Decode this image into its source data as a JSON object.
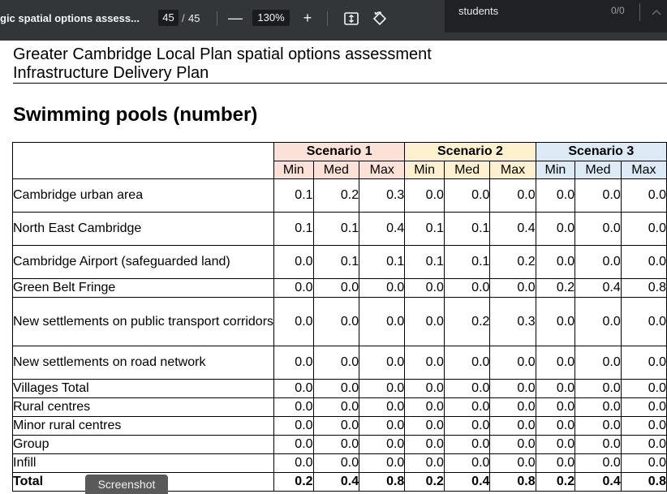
{
  "toolbar": {
    "doc_title": "gic spatial options assess...",
    "page_current": "45",
    "page_separator": "/",
    "page_total": "45",
    "zoom_out_label": "—",
    "zoom_value": "130%",
    "zoom_in_label": "+",
    "fit_icon": "fit-page-icon",
    "rotate_icon": "rotate-icon"
  },
  "findbar": {
    "query": "students",
    "count": "0/0",
    "up_icon": "chevron-up-icon"
  },
  "document": {
    "header_title": "Greater Cambridge Local Plan spatial options assessment",
    "header_subtitle": "Infrastructure Delivery Plan",
    "section_title": "Swimming pools (number)"
  },
  "table": {
    "scenarios": [
      "Scenario 1",
      "Scenario 2",
      "Scenario 3"
    ],
    "subheaders": [
      "Min",
      "Med",
      "Max",
      "Min",
      "Med",
      "Max",
      "Min",
      "Med",
      "Max"
    ],
    "rows": [
      {
        "label": "Cambridge urban area",
        "values": [
          "0.1",
          "0.2",
          "0.3",
          "0.0",
          "0.0",
          "0.0",
          "0.0",
          "0.0",
          "0.0"
        ]
      },
      {
        "label": "North East Cambridge",
        "values": [
          "0.1",
          "0.1",
          "0.4",
          "0.1",
          "0.1",
          "0.4",
          "0.0",
          "0.0",
          "0.0"
        ]
      },
      {
        "label": "Cambridge Airport (safeguarded land)",
        "values": [
          "0.0",
          "0.1",
          "0.1",
          "0.1",
          "0.1",
          "0.2",
          "0.0",
          "0.0",
          "0.0"
        ]
      },
      {
        "label": "Green Belt Fringe",
        "values": [
          "0.0",
          "0.0",
          "0.0",
          "0.0",
          "0.0",
          "0.0",
          "0.2",
          "0.4",
          "0.8"
        ]
      },
      {
        "label": "New settlements on public transport corridors",
        "values": [
          "0.0",
          "0.0",
          "0.0",
          "0.0",
          "0.2",
          "0.3",
          "0.0",
          "0.0",
          "0.0"
        ]
      },
      {
        "label": "New settlements on road network",
        "values": [
          "0.0",
          "0.0",
          "0.0",
          "0.0",
          "0.0",
          "0.0",
          "0.0",
          "0.0",
          "0.0"
        ]
      },
      {
        "label": "Villages Total",
        "values": [
          "0.0",
          "0.0",
          "0.0",
          "0.0",
          "0.0",
          "0.0",
          "0.0",
          "0.0",
          "0.0"
        ]
      },
      {
        "label": "Rural centres",
        "values": [
          "0.0",
          "0.0",
          "0.0",
          "0.0",
          "0.0",
          "0.0",
          "0.0",
          "0.0",
          "0.0"
        ]
      },
      {
        "label": "Minor rural centres",
        "values": [
          "0.0",
          "0.0",
          "0.0",
          "0.0",
          "0.0",
          "0.0",
          "0.0",
          "0.0",
          "0.0"
        ]
      },
      {
        "label": "Group",
        "values": [
          "0.0",
          "0.0",
          "0.0",
          "0.0",
          "0.0",
          "0.0",
          "0.0",
          "0.0",
          "0.0"
        ]
      },
      {
        "label": "Infill",
        "values": [
          "0.0",
          "0.0",
          "0.0",
          "0.0",
          "0.0",
          "0.0",
          "0.0",
          "0.0",
          "0.0"
        ]
      }
    ],
    "total": {
      "label": "Total",
      "values": [
        "0.2",
        "0.4",
        "0.8",
        "0.2",
        "0.4",
        "0.8",
        "0.2",
        "0.4",
        "0.8"
      ]
    }
  },
  "tooltip": {
    "text": "Screenshot"
  },
  "colors": {
    "toolbar_bg": "#323639",
    "scenario1": "#fbe1d6",
    "scenario2": "#fdf1cd",
    "scenario3": "#dbeaf5"
  }
}
